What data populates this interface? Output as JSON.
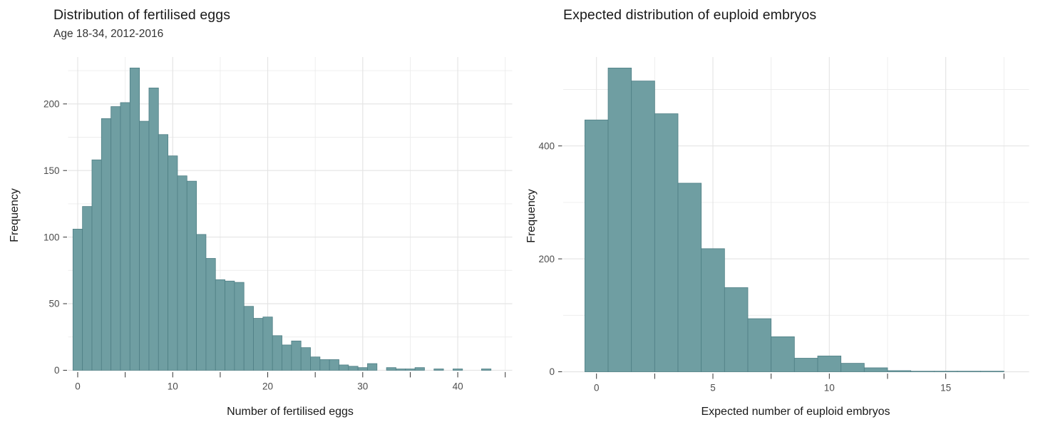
{
  "style": {
    "background": "#ffffff",
    "bar_fill": "#6f9ea2",
    "bar_stroke": "#4f7f85",
    "grid_major": "#e4e4e4",
    "grid_minor": "#ececec",
    "axis_tick_color": "#333333",
    "tick_label_color": "#4d4d4d",
    "title_color": "#191919",
    "subtitle_color": "#333333",
    "axis_title_color": "#1a1a1a"
  },
  "chart_data": [
    {
      "type": "bar",
      "subtype": "histogram",
      "title": "Distribution of fertilised eggs",
      "subtitle": "Age 18-34, 2012-2016",
      "xlabel": "Number of fertilised eggs",
      "ylabel": "Frequency",
      "bin_start": 0,
      "bin_width": 1,
      "values": [
        106,
        123,
        158,
        189,
        198,
        201,
        227,
        187,
        212,
        177,
        161,
        146,
        142,
        102,
        84,
        68,
        67,
        66,
        48,
        39,
        40,
        26,
        19,
        22,
        17,
        10,
        8,
        8,
        4,
        3,
        2,
        5,
        0,
        2,
        1,
        1,
        2,
        0,
        1,
        0,
        1,
        0,
        0,
        1
      ],
      "xlim": [
        -1.05,
        45.7
      ],
      "ylim": [
        0,
        235
      ],
      "grid": true,
      "legend": "none",
      "x_ticks": {
        "labeled_positions": [
          0,
          10,
          20,
          30,
          40
        ],
        "labels": [
          "0",
          "10",
          "20",
          "30",
          "40"
        ],
        "minor_positions": [
          5,
          15,
          25,
          35,
          45
        ]
      },
      "y_ticks": {
        "labeled_positions": [
          0,
          50,
          100,
          150,
          200
        ],
        "labels": [
          "0",
          "50",
          "100",
          "150",
          "200"
        ],
        "minor_positions": [
          25,
          75,
          125,
          175,
          225
        ]
      }
    },
    {
      "type": "bar",
      "subtype": "histogram",
      "title": "Expected distribution of euploid embryos",
      "subtitle": "",
      "xlabel": "Expected number of euploid embryos",
      "ylabel": "Frequency",
      "bin_start": 0,
      "bin_width": 1,
      "values": [
        446,
        538,
        515,
        457,
        334,
        218,
        149,
        94,
        62,
        24,
        28,
        15,
        7,
        2,
        1,
        1,
        1,
        1
      ],
      "xlim": [
        -1.45,
        18.6
      ],
      "ylim": [
        0,
        557
      ],
      "grid": true,
      "legend": "none",
      "x_ticks": {
        "labeled_positions": [
          0,
          5,
          10,
          15
        ],
        "labels": [
          "0",
          "5",
          "10",
          "15"
        ],
        "minor_positions": [
          2.5,
          7.5,
          12.5,
          17.5
        ]
      },
      "y_ticks": {
        "labeled_positions": [
          0,
          200,
          400
        ],
        "labels": [
          "0",
          "200",
          "400"
        ],
        "minor_positions": [
          100,
          300,
          500
        ]
      }
    }
  ]
}
